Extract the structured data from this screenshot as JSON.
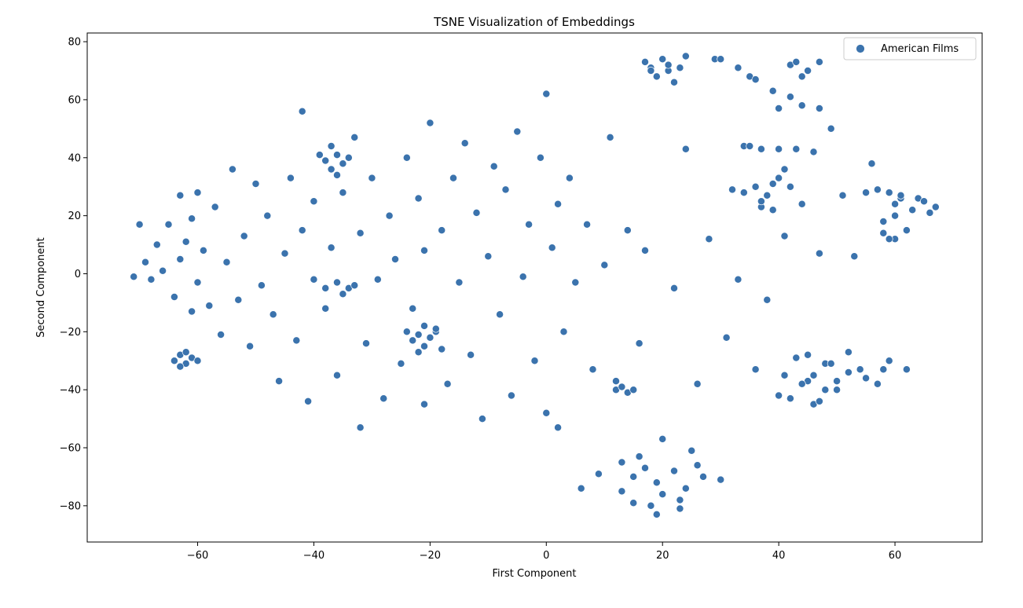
{
  "chart_data": {
    "type": "scatter",
    "title": "TSNE Visualization of Embeddings",
    "xlabel": "First Component",
    "ylabel": "Second Component",
    "xlim": [
      -79,
      75
    ],
    "ylim": [
      -92.5,
      83
    ],
    "x_ticks": [
      -60,
      -40,
      -20,
      0,
      20,
      40,
      60
    ],
    "y_ticks": [
      -80,
      -60,
      -40,
      -20,
      0,
      20,
      40,
      60,
      80
    ],
    "x_tick_labels": [
      "−60",
      "−40",
      "−20",
      "0",
      "20",
      "40",
      "60"
    ],
    "y_tick_labels": [
      "−80",
      "−60",
      "−40",
      "−20",
      "0",
      "20",
      "40",
      "60",
      "80"
    ],
    "grid": false,
    "legend_position": "top-right",
    "series": [
      {
        "name": "American Films",
        "color": "#3b73ad",
        "points": [
          [
            -71,
            -1
          ],
          [
            -70,
            17
          ],
          [
            -69,
            4
          ],
          [
            -68,
            -2
          ],
          [
            -67,
            10
          ],
          [
            -66,
            1
          ],
          [
            -65,
            17
          ],
          [
            -64,
            -8
          ],
          [
            -63,
            5
          ],
          [
            -63,
            27
          ],
          [
            -62,
            11
          ],
          [
            -61,
            -13
          ],
          [
            -61,
            19
          ],
          [
            -60,
            -3
          ],
          [
            -60,
            28
          ],
          [
            -59,
            8
          ],
          [
            -58,
            -11
          ],
          [
            -57,
            23
          ],
          [
            -56,
            -21
          ],
          [
            -55,
            4
          ],
          [
            -54,
            36
          ],
          [
            -53,
            -9
          ],
          [
            -52,
            13
          ],
          [
            -51,
            -25
          ],
          [
            -50,
            31
          ],
          [
            -49,
            -4
          ],
          [
            -48,
            20
          ],
          [
            -47,
            -14
          ],
          [
            -46,
            -37
          ],
          [
            -45,
            7
          ],
          [
            -44,
            33
          ],
          [
            -43,
            -23
          ],
          [
            -42,
            15
          ],
          [
            -42,
            56
          ],
          [
            -41,
            -44
          ],
          [
            -40,
            -2
          ],
          [
            -40,
            25
          ],
          [
            -39,
            41
          ],
          [
            -38,
            -12
          ],
          [
            -37,
            9
          ],
          [
            -36,
            -35
          ],
          [
            -35,
            28
          ],
          [
            -34,
            -5
          ],
          [
            -33,
            47
          ],
          [
            -32,
            -53
          ],
          [
            -32,
            14
          ],
          [
            -31,
            -24
          ],
          [
            -30,
            33
          ],
          [
            -29,
            -2
          ],
          [
            -28,
            -43
          ],
          [
            -27,
            20
          ],
          [
            -26,
            5
          ],
          [
            -25,
            -31
          ],
          [
            -24,
            40
          ],
          [
            -23,
            -12
          ],
          [
            -22,
            26
          ],
          [
            -21,
            -45
          ],
          [
            -21,
            8
          ],
          [
            -20,
            52
          ],
          [
            -19,
            -20
          ],
          [
            -18,
            15
          ],
          [
            -17,
            -38
          ],
          [
            -16,
            33
          ],
          [
            -15,
            -3
          ],
          [
            -14,
            45
          ],
          [
            -13,
            -28
          ],
          [
            -12,
            21
          ],
          [
            -11,
            -50
          ],
          [
            -10,
            6
          ],
          [
            -9,
            37
          ],
          [
            -8,
            -14
          ],
          [
            -7,
            29
          ],
          [
            -6,
            -42
          ],
          [
            -5,
            49
          ],
          [
            -4,
            -1
          ],
          [
            -3,
            17
          ],
          [
            -2,
            -30
          ],
          [
            -1,
            40
          ],
          [
            0,
            -48
          ],
          [
            0,
            62
          ],
          [
            1,
            9
          ],
          [
            2,
            -53
          ],
          [
            2,
            24
          ],
          [
            3,
            -20
          ],
          [
            4,
            33
          ],
          [
            5,
            -3
          ],
          [
            6,
            -74
          ],
          [
            7,
            17
          ],
          [
            8,
            -33
          ],
          [
            9,
            -69
          ],
          [
            10,
            3
          ],
          [
            11,
            47
          ],
          [
            12,
            -40
          ],
          [
            13,
            -65
          ],
          [
            14,
            15
          ],
          [
            15,
            -79
          ],
          [
            16,
            -24
          ],
          [
            17,
            8
          ],
          [
            18,
            71
          ],
          [
            19,
            -72
          ],
          [
            19,
            -83
          ],
          [
            20,
            -57
          ],
          [
            21,
            70
          ],
          [
            22,
            -5
          ],
          [
            23,
            -78
          ],
          [
            24,
            43
          ],
          [
            25,
            -61
          ],
          [
            26,
            -38
          ],
          [
            27,
            -70
          ],
          [
            28,
            12
          ],
          [
            29,
            74
          ],
          [
            30,
            -71
          ],
          [
            31,
            -22
          ],
          [
            32,
            29
          ],
          [
            33,
            -2
          ],
          [
            34,
            44
          ],
          [
            35,
            68
          ],
          [
            36,
            -33
          ],
          [
            37,
            23
          ],
          [
            38,
            -9
          ],
          [
            39,
            31
          ],
          [
            40,
            -42
          ],
          [
            41,
            13
          ],
          [
            42,
            72
          ],
          [
            43,
            -29
          ],
          [
            44,
            24
          ],
          [
            45,
            -37
          ],
          [
            46,
            -45
          ],
          [
            47,
            7
          ],
          [
            48,
            -31
          ],
          [
            49,
            50
          ],
          [
            50,
            -40
          ],
          [
            51,
            27
          ],
          [
            52,
            -27
          ],
          [
            53,
            6
          ],
          [
            54,
            -33
          ],
          [
            55,
            28
          ],
          [
            56,
            38
          ],
          [
            57,
            -38
          ],
          [
            58,
            18
          ],
          [
            59,
            -30
          ],
          [
            60,
            12
          ],
          [
            61,
            26
          ],
          [
            62,
            -33
          ],
          [
            64,
            26
          ],
          [
            66,
            21
          ],
          [
            67,
            23
          ],
          [
            -64,
            -30
          ],
          [
            -63,
            -28
          ],
          [
            -62,
            -31
          ],
          [
            -61,
            -29
          ],
          [
            -60,
            -30
          ],
          [
            -63,
            -32
          ],
          [
            -62,
            -27
          ],
          [
            -38,
            39
          ],
          [
            -37,
            36
          ],
          [
            -36,
            41
          ],
          [
            -35,
            38
          ],
          [
            -36,
            34
          ],
          [
            -34,
            40
          ],
          [
            -37,
            44
          ],
          [
            -23,
            -23
          ],
          [
            -22,
            -21
          ],
          [
            -21,
            -25
          ],
          [
            -20,
            -22
          ],
          [
            -22,
            -27
          ],
          [
            -19,
            -19
          ],
          [
            -24,
            -20
          ],
          [
            -21,
            -18
          ],
          [
            -18,
            -26
          ],
          [
            -38,
            -5
          ],
          [
            -36,
            -3
          ],
          [
            -35,
            -7
          ],
          [
            -33,
            -4
          ],
          [
            13,
            -39
          ],
          [
            14,
            -41
          ],
          [
            12,
            -37
          ],
          [
            15,
            -40
          ],
          [
            17,
            73
          ],
          [
            19,
            68
          ],
          [
            20,
            74
          ],
          [
            22,
            66
          ],
          [
            23,
            71
          ],
          [
            24,
            75
          ],
          [
            21,
            72
          ],
          [
            18,
            70
          ],
          [
            35,
            44
          ],
          [
            37,
            43
          ],
          [
            40,
            43
          ],
          [
            43,
            43
          ],
          [
            46,
            42
          ],
          [
            30,
            74
          ],
          [
            33,
            71
          ],
          [
            36,
            67
          ],
          [
            39,
            63
          ],
          [
            40,
            57
          ],
          [
            42,
            61
          ],
          [
            44,
            58
          ],
          [
            47,
            57
          ],
          [
            43,
            73
          ],
          [
            45,
            70
          ],
          [
            47,
            73
          ],
          [
            44,
            68
          ],
          [
            57,
            29
          ],
          [
            59,
            28
          ],
          [
            61,
            27
          ],
          [
            60,
            20
          ],
          [
            58,
            14
          ],
          [
            59,
            12
          ],
          [
            62,
            15
          ],
          [
            63,
            22
          ],
          [
            65,
            25
          ],
          [
            60,
            24
          ],
          [
            44,
            -38
          ],
          [
            46,
            -35
          ],
          [
            48,
            -40
          ],
          [
            42,
            -43
          ],
          [
            50,
            -37
          ],
          [
            52,
            -34
          ],
          [
            55,
            -36
          ],
          [
            58,
            -33
          ],
          [
            45,
            -28
          ],
          [
            47,
            -44
          ],
          [
            41,
            -35
          ],
          [
            49,
            -31
          ],
          [
            36,
            30
          ],
          [
            38,
            27
          ],
          [
            40,
            33
          ],
          [
            37,
            25
          ],
          [
            39,
            22
          ],
          [
            42,
            30
          ],
          [
            34,
            28
          ],
          [
            41,
            36
          ],
          [
            15,
            -70
          ],
          [
            17,
            -67
          ],
          [
            13,
            -75
          ],
          [
            20,
            -76
          ],
          [
            22,
            -68
          ],
          [
            24,
            -74
          ],
          [
            18,
            -80
          ],
          [
            16,
            -63
          ],
          [
            23,
            -81
          ],
          [
            26,
            -66
          ]
        ]
      }
    ]
  }
}
